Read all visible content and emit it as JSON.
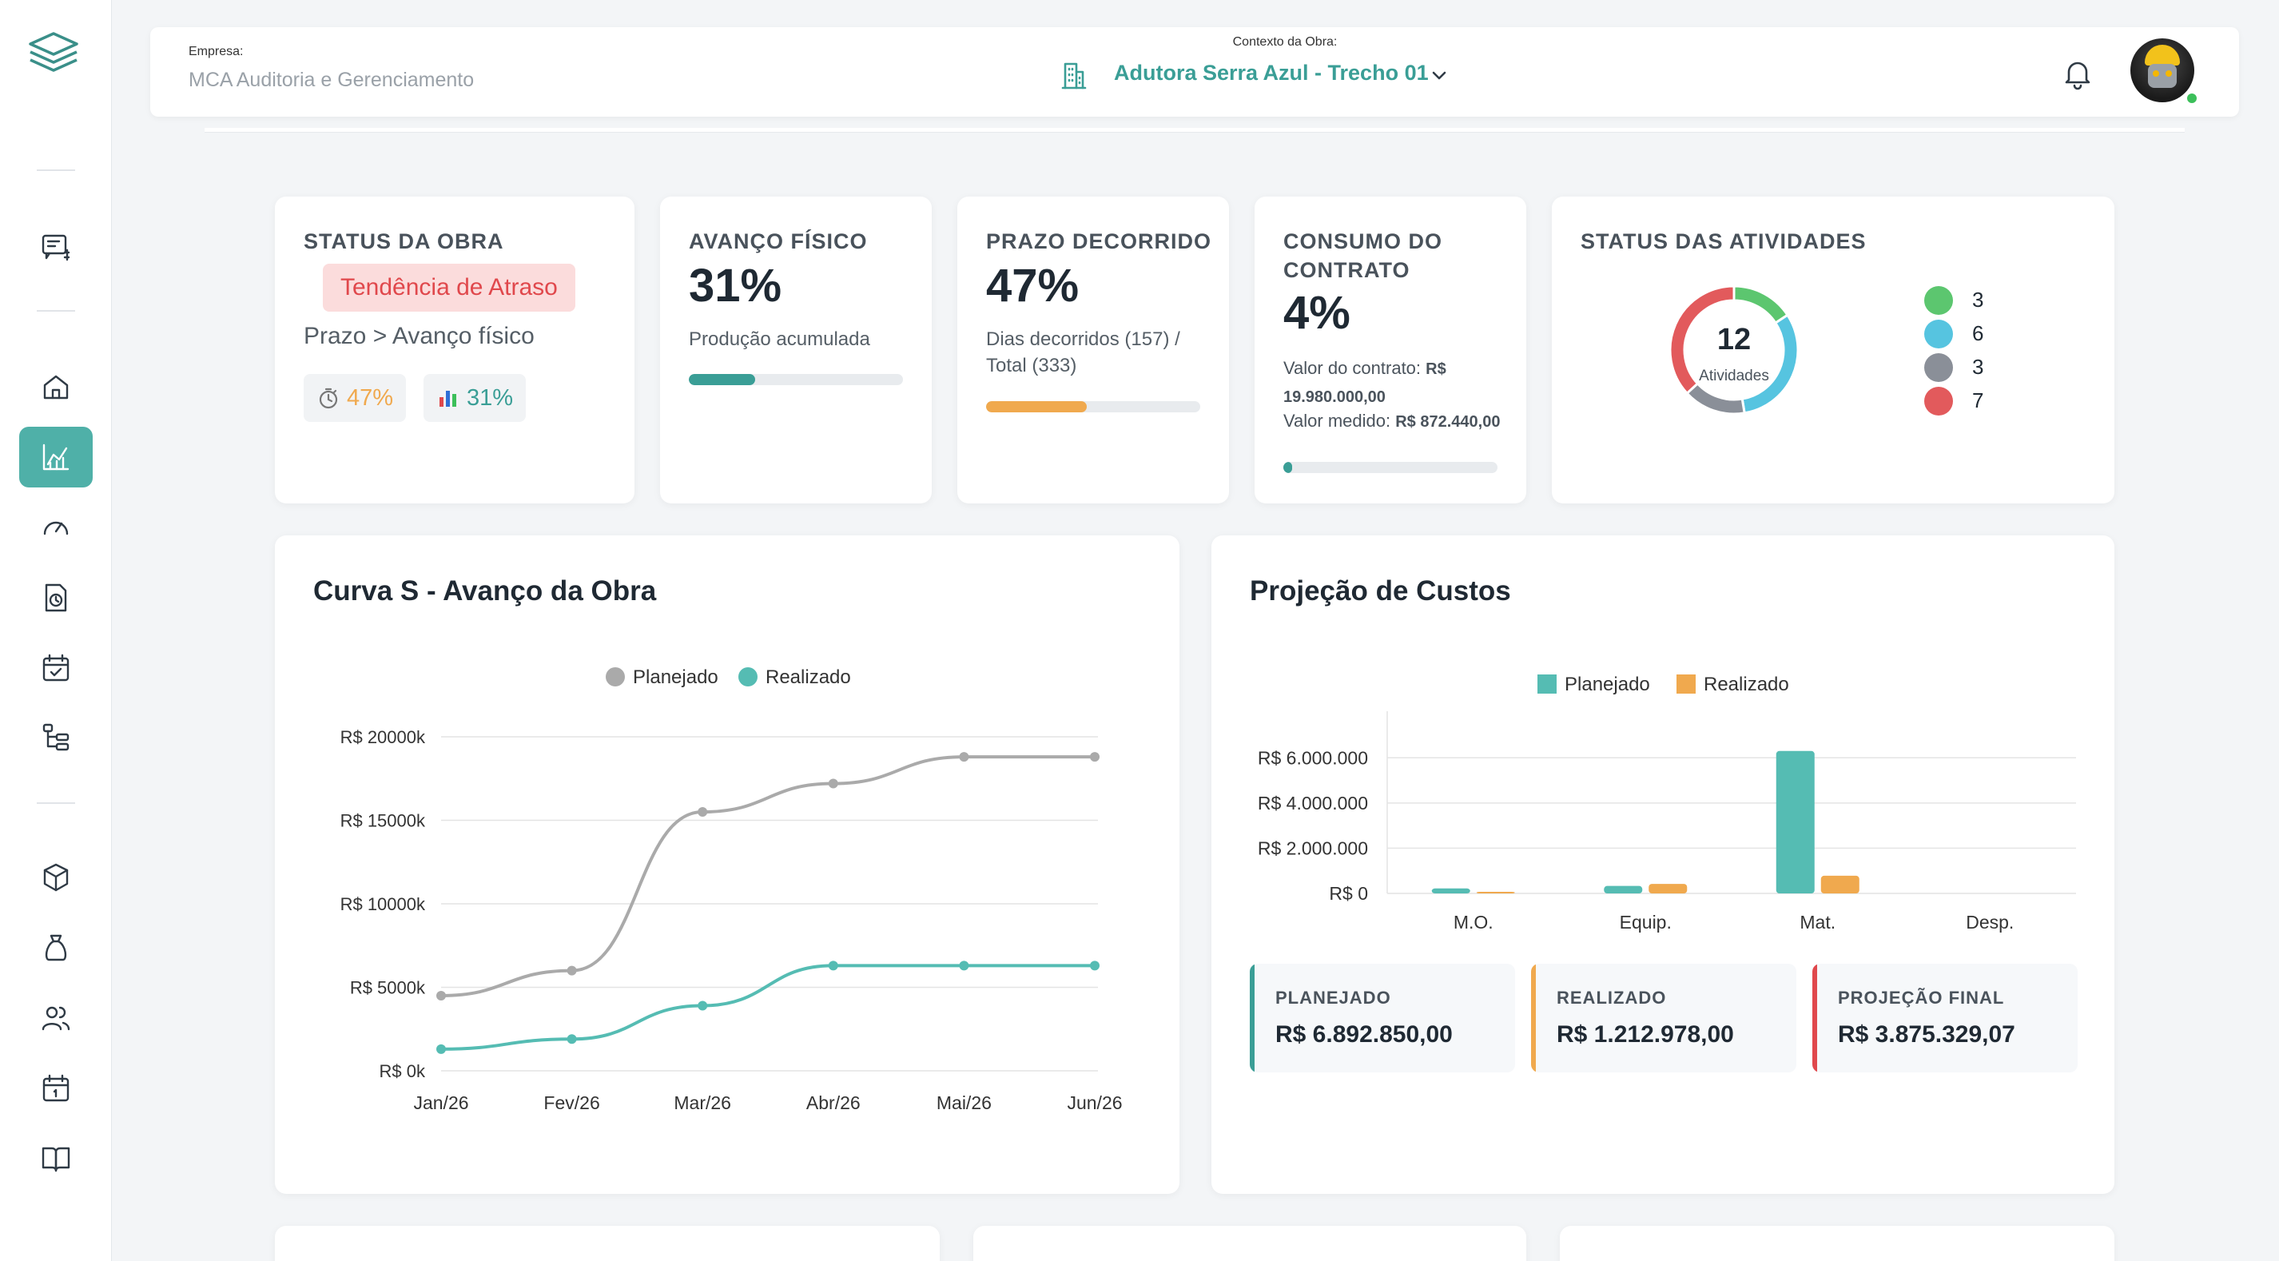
{
  "header": {
    "company_label": "Empresa:",
    "company_name": "MCA Auditoria e Gerenciamento",
    "context_label": "Contexto da Obra:",
    "context_name": "Adutora Serra Azul - Trecho 01"
  },
  "colors": {
    "accent": "#4fb0a8",
    "planned": "#55bcb3",
    "actual": "#f0a94e",
    "danger": "#e0484c",
    "gray_line": "#aaaaaa"
  },
  "sidebar": {
    "items": [
      {
        "icon": "billing-icon"
      },
      {
        "icon": "home-icon"
      },
      {
        "icon": "chart-icon",
        "active": true
      },
      {
        "icon": "gauge-icon"
      },
      {
        "icon": "document-clock-icon"
      },
      {
        "icon": "calendar-check-icon"
      },
      {
        "icon": "hierarchy-icon"
      },
      {
        "icon": "box-icon"
      },
      {
        "icon": "money-bag-icon"
      },
      {
        "icon": "users-icon"
      },
      {
        "icon": "calendar-icon"
      },
      {
        "icon": "book-icon"
      }
    ]
  },
  "status_card": {
    "title": "STATUS DA OBRA",
    "badge": "Tendência de Atraso",
    "subtitle": "Prazo > Avanço físico",
    "prazo_pill": "47%",
    "avanco_pill": "31%"
  },
  "avanco_card": {
    "title": "AVANÇO FÍSICO",
    "value": "31%",
    "sub": "Produção acumulada",
    "progress": 0.31
  },
  "prazo_card": {
    "title": "PRAZO DECORRIDO",
    "value": "47%",
    "sub": "Dias decorridos (157) / Total (333)",
    "progress": 0.47
  },
  "consumo_card": {
    "title": "CONSUMO DO CONTRATO",
    "value": "4%",
    "contract_label": "Valor do contrato:",
    "contract_value": "R$ 19.980.000,00",
    "measured_label": "Valor medido:",
    "measured_value": "R$ 872.440,00",
    "progress": 0.04
  },
  "activities_card": {
    "title": "STATUS DAS ATIVIDADES",
    "total": "12",
    "total_label": "Atividades",
    "legend": [
      {
        "value": "3",
        "color": "#5cc66f"
      },
      {
        "value": "6",
        "color": "#56c4e0"
      },
      {
        "value": "3",
        "color": "#8a8f98"
      },
      {
        "value": "7",
        "color": "#e25a5c"
      }
    ]
  },
  "curve_card": {
    "title": "Curva S - Avanço da Obra"
  },
  "cost_card": {
    "title": "Projeção de Custos",
    "summary": [
      {
        "label": "PLANEJADO",
        "value": "R$ 6.892.850,00",
        "color": "#55bcb3"
      },
      {
        "label": "REALIZADO",
        "value": "R$ 1.212.978,00",
        "color": "#f0a94e"
      },
      {
        "label": "PROJEÇÃO FINAL",
        "value": "R$ 3.875.329,07",
        "color": "#e0484c"
      }
    ]
  },
  "chart_data": [
    {
      "type": "line",
      "title": "Curva S - Avanço da Obra",
      "x": [
        "Jan/26",
        "Fev/26",
        "Mar/26",
        "Abr/26",
        "Mai/26",
        "Jun/26"
      ],
      "series": [
        {
          "name": "Planejado",
          "color": "#aaaaaa",
          "values": [
            4500,
            6000,
            15500,
            17200,
            18800,
            18800
          ]
        },
        {
          "name": "Realizado",
          "color": "#55bcb3",
          "values": [
            1300,
            1900,
            3900,
            6300,
            6300,
            6300
          ]
        }
      ],
      "y_ticks": [
        "R$ 0k",
        "R$ 5000k",
        "R$ 10000k",
        "R$ 15000k",
        "R$ 20000k"
      ],
      "ylim": [
        0,
        20000
      ],
      "grid": true,
      "legend": "top-center"
    },
    {
      "type": "bar",
      "title": "Projeção de Custos",
      "categories": [
        "M.O.",
        "Equip.",
        "Mat.",
        "Desp."
      ],
      "series": [
        {
          "name": "Planejado",
          "color": "#55bcb3",
          "values": [
            220000,
            330000,
            6300000,
            0
          ]
        },
        {
          "name": "Realizado",
          "color": "#f0a94e",
          "values": [
            20000,
            420000,
            780000,
            0
          ]
        }
      ],
      "y_ticks": [
        "R$ 0",
        "R$ 2.000.000",
        "R$ 4.000.000",
        "R$ 6.000.000"
      ],
      "ylim": [
        0,
        7000000
      ],
      "grid": true,
      "legend": "top-center"
    }
  ]
}
